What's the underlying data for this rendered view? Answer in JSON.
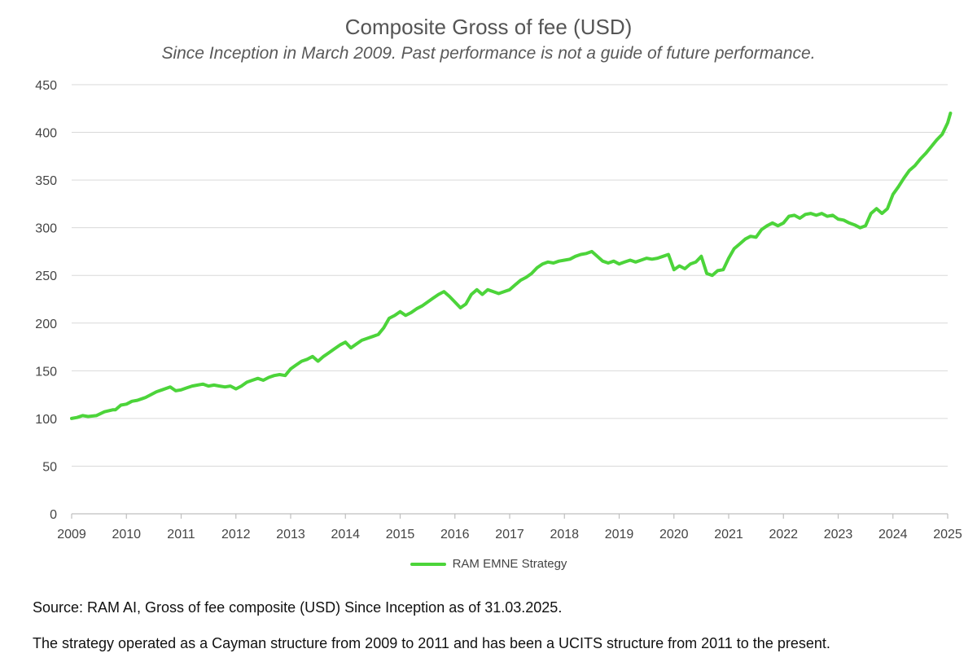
{
  "colors": {
    "series": "#4cd43a",
    "grid": "#d9d9d9",
    "axis": "#bfbfbf"
  },
  "footnotes": {
    "source": "Source: RAM AI, Gross of fee composite (USD) Since Inception as of 31.03.2025.",
    "structure": "The strategy operated as a Cayman structure from 2009 to 2011 and has been a UCITS structure from 2011 to the present."
  },
  "chart_data": {
    "type": "line",
    "title": "Composite Gross of fee (USD)",
    "subtitle": "Since Inception in March 2009. Past performance is not a guide of future performance.",
    "xlabel": "",
    "ylabel": "",
    "xlim": [
      2009.0,
      2025.0
    ],
    "ylim": [
      0,
      450
    ],
    "y_ticks": [
      0,
      50,
      100,
      150,
      200,
      250,
      300,
      350,
      400,
      450
    ],
    "x_ticks": [
      "2009",
      "2010",
      "2011",
      "2012",
      "2013",
      "2014",
      "2015",
      "2016",
      "2017",
      "2018",
      "2019",
      "2020",
      "2021",
      "2022",
      "2023",
      "2024",
      "2025"
    ],
    "grid": "horizontal",
    "legend_position": "bottom",
    "series": [
      {
        "name": "RAM EMNE Strategy",
        "color": "#4cd43a",
        "x": [
          2009.0,
          2009.1,
          2009.2,
          2009.3,
          2009.45,
          2009.6,
          2009.75,
          2009.8,
          2009.9,
          2010.0,
          2010.1,
          2010.2,
          2010.3,
          2010.35,
          2010.45,
          2010.55,
          2010.65,
          2010.8,
          2010.9,
          2011.0,
          2011.1,
          2011.2,
          2011.3,
          2011.4,
          2011.5,
          2011.6,
          2011.7,
          2011.8,
          2011.9,
          2012.0,
          2012.1,
          2012.2,
          2012.3,
          2012.4,
          2012.5,
          2012.6,
          2012.7,
          2012.8,
          2012.9,
          2013.0,
          2013.1,
          2013.2,
          2013.3,
          2013.4,
          2013.5,
          2013.6,
          2013.7,
          2013.8,
          2013.9,
          2014.0,
          2014.1,
          2014.2,
          2014.3,
          2014.4,
          2014.5,
          2014.6,
          2014.7,
          2014.8,
          2014.9,
          2015.0,
          2015.1,
          2015.2,
          2015.3,
          2015.4,
          2015.5,
          2015.6,
          2015.7,
          2015.8,
          2015.9,
          2016.0,
          2016.1,
          2016.2,
          2016.3,
          2016.4,
          2016.5,
          2016.6,
          2016.7,
          2016.8,
          2016.9,
          2017.0,
          2017.1,
          2017.2,
          2017.3,
          2017.4,
          2017.5,
          2017.6,
          2017.7,
          2017.8,
          2017.9,
          2018.0,
          2018.1,
          2018.2,
          2018.3,
          2018.4,
          2018.5,
          2018.6,
          2018.7,
          2018.8,
          2018.9,
          2019.0,
          2019.1,
          2019.2,
          2019.3,
          2019.4,
          2019.5,
          2019.6,
          2019.7,
          2019.8,
          2019.9,
          2020.0,
          2020.1,
          2020.2,
          2020.3,
          2020.4,
          2020.5,
          2020.6,
          2020.7,
          2020.8,
          2020.9,
          2021.0,
          2021.1,
          2021.2,
          2021.3,
          2021.4,
          2021.5,
          2021.6,
          2021.7,
          2021.8,
          2021.9,
          2022.0,
          2022.1,
          2022.2,
          2022.3,
          2022.4,
          2022.5,
          2022.6,
          2022.7,
          2022.8,
          2022.9,
          2023.0,
          2023.1,
          2023.2,
          2023.3,
          2023.4,
          2023.5,
          2023.6,
          2023.7,
          2023.8,
          2023.9,
          2024.0,
          2024.1,
          2024.2,
          2024.3,
          2024.4,
          2024.5,
          2024.6,
          2024.7,
          2024.8,
          2024.9,
          2025.0,
          2025.05
        ],
        "values": [
          100,
          101,
          103,
          102,
          103,
          107,
          109,
          109,
          114,
          115,
          118,
          119,
          121,
          122,
          125,
          128,
          130,
          133,
          129,
          130,
          132,
          134,
          135,
          136,
          134,
          135,
          134,
          133,
          134,
          131,
          134,
          138,
          140,
          142,
          140,
          143,
          145,
          146,
          145,
          152,
          156,
          160,
          162,
          165,
          160,
          165,
          169,
          173,
          177,
          180,
          174,
          178,
          182,
          184,
          186,
          188,
          195,
          205,
          208,
          212,
          208,
          211,
          215,
          218,
          222,
          226,
          230,
          233,
          228,
          222,
          216,
          220,
          230,
          235,
          230,
          235,
          233,
          231,
          233,
          235,
          240,
          245,
          248,
          252,
          258,
          262,
          264,
          263,
          265,
          266,
          267,
          270,
          272,
          273,
          275,
          270,
          265,
          263,
          265,
          262,
          264,
          266,
          264,
          266,
          268,
          267,
          268,
          270,
          272,
          256,
          260,
          257,
          262,
          264,
          270,
          252,
          250,
          255,
          256,
          268,
          278,
          283,
          288,
          291,
          290,
          298,
          302,
          305,
          302,
          305,
          312,
          313,
          310,
          314,
          315,
          313,
          315,
          312,
          313,
          309,
          308,
          305,
          303,
          300,
          302,
          315,
          320,
          315,
          320,
          335,
          343,
          352,
          360,
          365,
          372,
          378,
          385,
          392,
          398,
          410,
          420
        ]
      }
    ]
  }
}
